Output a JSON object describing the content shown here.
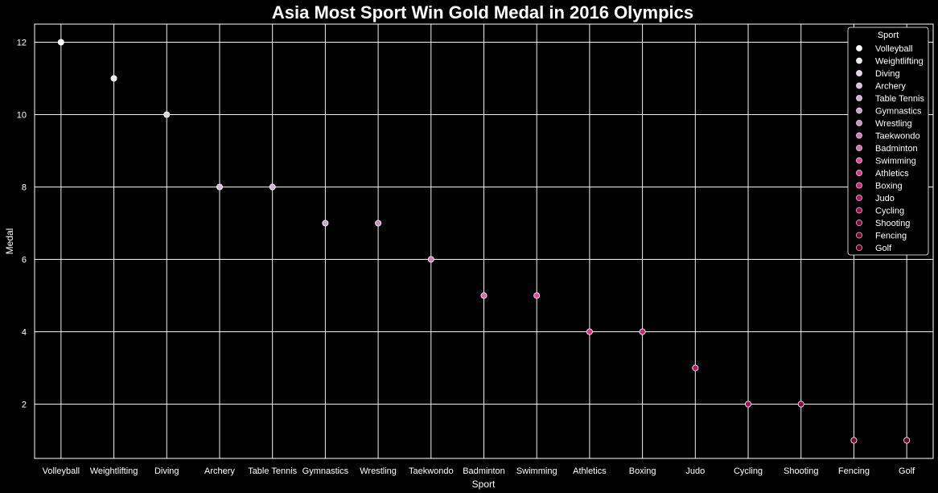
{
  "chart_data": {
    "type": "scatter",
    "title": "Asia Most Sport Win Gold Medal in 2016 Olympics",
    "xlabel": "Sport",
    "ylabel": "Medal",
    "categories": [
      "Volleyball",
      "Weightlifting",
      "Diving",
      "Archery",
      "Table Tennis",
      "Gymnastics",
      "Wrestling",
      "Taekwondo",
      "Badminton",
      "Swimming",
      "Athletics",
      "Boxing",
      "Judo",
      "Cycling",
      "Shooting",
      "Fencing",
      "Golf"
    ],
    "values": [
      12,
      11,
      10,
      8,
      8,
      7,
      7,
      6,
      5,
      5,
      4,
      4,
      3,
      2,
      2,
      1,
      1
    ],
    "ylim": [
      0.5,
      12.5
    ],
    "yticks": [
      2,
      4,
      6,
      8,
      10,
      12
    ],
    "grid": true,
    "legend": {
      "title": "Sport",
      "position": "top-right"
    },
    "colors": [
      "#ffffff",
      "#f1e5f1",
      "#e7d3e9",
      "#dbbde0",
      "#d3b0da",
      "#cda2d2",
      "#cc92c8",
      "#d27cbb",
      "#df66ad",
      "#e6479c",
      "#e1308b",
      "#d4227b",
      "#c0146a",
      "#aa0a58",
      "#950346",
      "#820035",
      "#6a0026"
    ],
    "background": "#000000"
  }
}
